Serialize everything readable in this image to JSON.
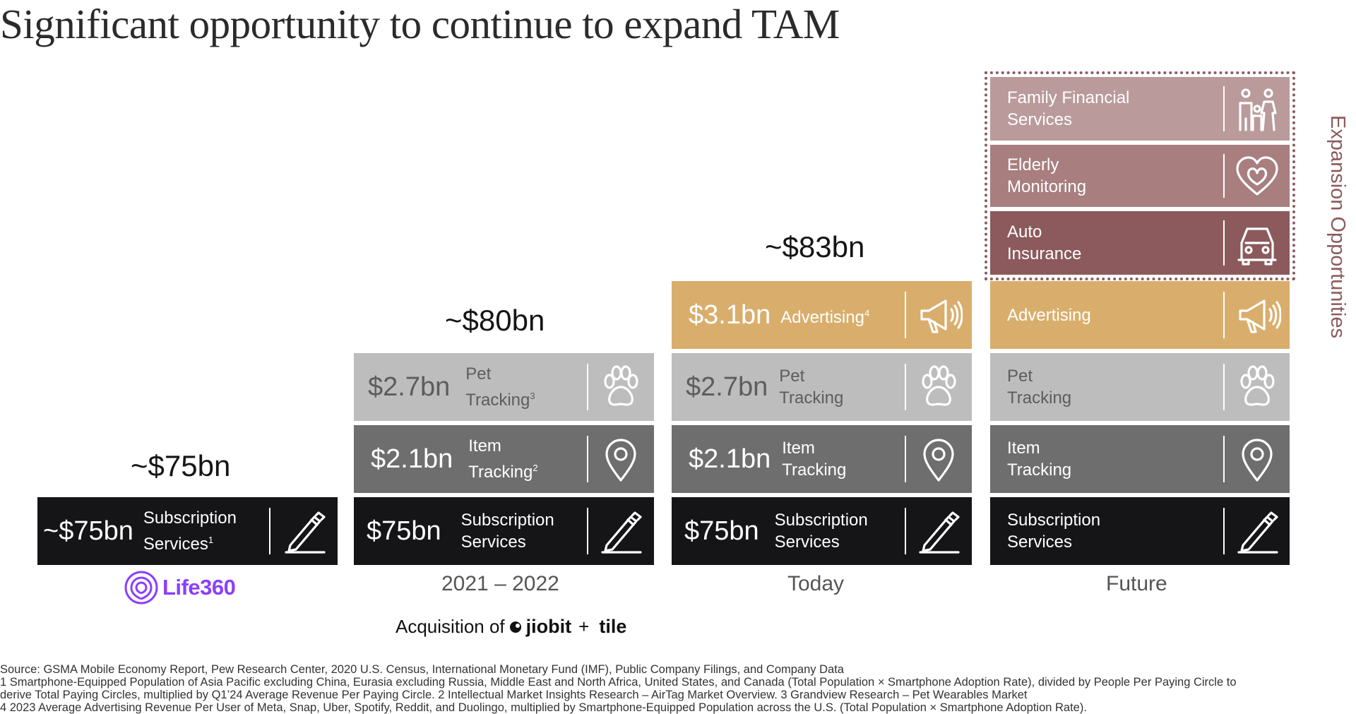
{
  "title": "Significant opportunity to continue to expand TAM",
  "columns": [
    {
      "total": "~$75bn",
      "blocks": [
        {
          "amount": "~$75bn",
          "label1": "Subscription",
          "label2": "Services",
          "sup": "1"
        }
      ],
      "logo_text": "Life360"
    },
    {
      "total": "~$80bn",
      "x_label": "2021 – 2022",
      "blocks": [
        {
          "amount": "$2.7bn",
          "label1": "Pet",
          "label2": "Tracking",
          "sup": "3"
        },
        {
          "amount": "$2.1bn",
          "label1": "Item",
          "label2": "Tracking",
          "sup": "2"
        },
        {
          "amount": "$75bn",
          "label1": "Subscription",
          "label2": "Services"
        }
      ]
    },
    {
      "total": "~$83bn",
      "x_label": "Today",
      "blocks": [
        {
          "amount": "$3.1bn",
          "label1": "Advertising",
          "sup": "4"
        },
        {
          "amount": "$2.7bn",
          "label1": "Pet",
          "label2": "Tracking"
        },
        {
          "amount": "$2.1bn",
          "label1": "Item",
          "label2": "Tracking"
        },
        {
          "amount": "$75bn",
          "label1": "Subscription",
          "label2": "Services"
        }
      ]
    },
    {
      "x_label": "Future",
      "blocks": [
        {
          "label1": "Family Financial",
          "label2": "Services"
        },
        {
          "label1": "Elderly",
          "label2": "Monitoring"
        },
        {
          "label1": "Auto",
          "label2": "Insurance"
        },
        {
          "label1": "Advertising"
        },
        {
          "label1": "Pet",
          "label2": "Tracking"
        },
        {
          "label1": "Item",
          "label2": "Tracking"
        },
        {
          "label1": "Subscription",
          "label2": "Services"
        }
      ]
    }
  ],
  "expansion_label": "Expansion Opportunities",
  "acquisition": {
    "prefix": "Acquisition of",
    "brand1": "jiobit",
    "plus": "+",
    "brand2": "tile"
  },
  "colors": {
    "subscription": "#151518",
    "item": "#6e6e6e",
    "pet": "#bdbdbd",
    "advertising": "#d9ae6c",
    "auto": "#8c5a5c",
    "elderly": "#a87e7f",
    "family": "#ba9a9a",
    "life360": "#8a3ffc"
  },
  "icons": [
    "pen-icon",
    "location-pin-icon",
    "paw-icon",
    "megaphone-icon",
    "car-icon",
    "heart-icon",
    "family-icon"
  ],
  "sources": [
    "Source: GSMA Mobile Economy Report, Pew Research Center, 2020 U.S. Census, International Monetary Fund (IMF), Public Company Filings, and Company Data",
    "1 Smartphone-Equipped Population of Asia Pacific excluding China, Eurasia excluding Russia, Middle East and North Africa, United States, and Canada (Total Population × Smartphone Adoption Rate), divided by People Per Paying Circle to",
    "derive Total Paying Circles, multiplied by Q1’24 Average Revenue Per Paying Circle. 2 Intellectual Market Insights Research – AirTag Market Overview. 3 Grandview Research – Pet Wearables Market",
    "4 2023 Average Advertising Revenue Per User of Meta, Snap, Uber, Spotify, Reddit, and Duolingo, multiplied by Smartphone-Equipped Population across the U.S. (Total Population × Smartphone Adoption Rate)."
  ]
}
